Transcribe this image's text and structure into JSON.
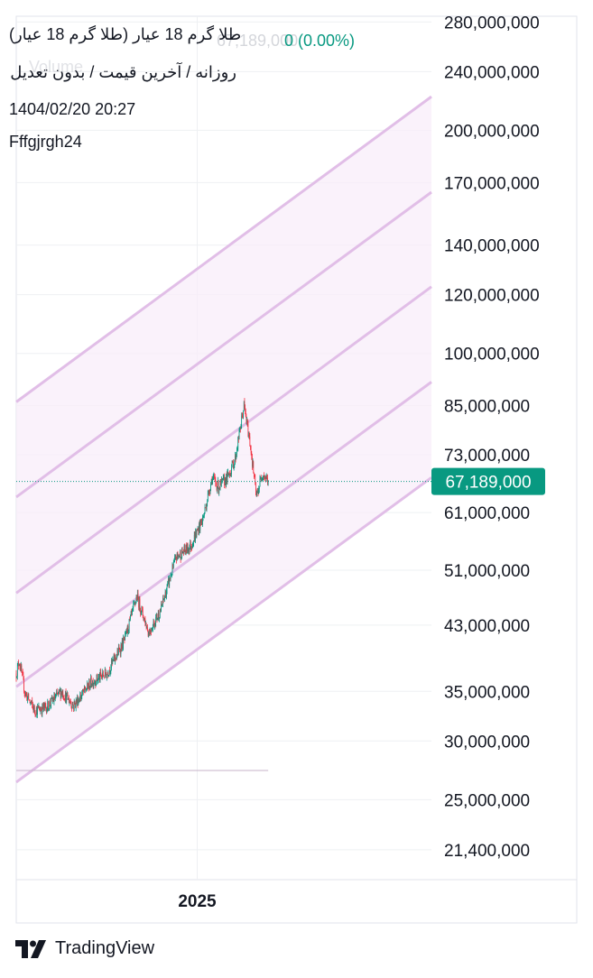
{
  "header": {
    "title": "طلا گرم 18 عیار (طلا گرم 18 عیار)",
    "price_ghost": "67,189,000",
    "change": "0 (0.00%)",
    "subtitle": "روزانه / آخرین قیمت / بدون تعدیل",
    "volume_ghost": "Volume",
    "datetime": "1404/02/20 20:27",
    "author": "Fffgjrgh24"
  },
  "footer": {
    "brand": "TradingView",
    "logo_icon": "tradingview-logo-icon"
  },
  "colors": {
    "up": "#089981",
    "down": "#f23645",
    "channel_line": "#e1bee7",
    "channel_fill": "#f8eefa",
    "last_price_bg": "#089981",
    "grid": "#eef0f3"
  },
  "chart_data": {
    "type": "candlestick",
    "scale": "log",
    "xlabel": "",
    "ylabel": "",
    "x_tick_labels": [
      {
        "label": "2025",
        "date": "2025-01-01"
      }
    ],
    "x_range": [
      "2024-03-01",
      "2026-02-01"
    ],
    "y_range": [
      19500000,
      285000000
    ],
    "y_tick_labels": [
      "280,000,000",
      "240,000,000",
      "200,000,000",
      "170,000,000",
      "140,000,000",
      "120,000,000",
      "100,000,000",
      "85,000,000",
      "73,000,000",
      "61,000,000",
      "51,000,000",
      "43,000,000",
      "35,000,000",
      "30,000,000",
      "25,000,000",
      "21,400,000"
    ],
    "last_price": 67189000,
    "last_price_label": "67,189,000",
    "grid": true,
    "price_anchors": [
      {
        "date": "2024-03-01",
        "close": 37000000
      },
      {
        "date": "2024-03-06",
        "close": 38500000
      },
      {
        "date": "2024-03-16",
        "close": 34800000
      },
      {
        "date": "2024-04-01",
        "close": 33000000
      },
      {
        "date": "2024-04-21",
        "close": 33300000
      },
      {
        "date": "2024-05-16",
        "close": 35000000
      },
      {
        "date": "2024-06-06",
        "close": 33500000
      },
      {
        "date": "2024-07-06",
        "close": 36000000
      },
      {
        "date": "2024-08-01",
        "close": 37000000
      },
      {
        "date": "2024-08-31",
        "close": 41000000
      },
      {
        "date": "2024-09-21",
        "close": 47000000
      },
      {
        "date": "2024-10-11",
        "close": 42000000
      },
      {
        "date": "2024-10-31",
        "close": 45000000
      },
      {
        "date": "2024-11-26",
        "close": 53000000
      },
      {
        "date": "2024-12-21",
        "close": 55000000
      },
      {
        "date": "2025-01-11",
        "close": 60000000
      },
      {
        "date": "2025-01-26",
        "close": 68000000
      },
      {
        "date": "2025-02-06",
        "close": 66000000
      },
      {
        "date": "2025-02-21",
        "close": 68000000
      },
      {
        "date": "2025-03-06",
        "close": 72000000
      },
      {
        "date": "2025-03-21",
        "close": 85000000
      },
      {
        "date": "2025-04-01",
        "close": 75000000
      },
      {
        "date": "2025-04-11",
        "close": 64000000
      },
      {
        "date": "2025-04-21",
        "close": 69000000
      },
      {
        "date": "2025-05-01",
        "close": 67189000
      }
    ],
    "channel": {
      "type": "parallel-channel",
      "x_start": "2024-03-01",
      "x_end": "2026-02-01",
      "lines": [
        {
          "start": 86000000,
          "end": 222000000
        },
        {
          "start": 64000000,
          "end": 165000000
        },
        {
          "start": 47500000,
          "end": 123000000
        },
        {
          "start": 35500000,
          "end": 91500000
        },
        {
          "start": 26400000,
          "end": 68000000
        }
      ]
    }
  }
}
